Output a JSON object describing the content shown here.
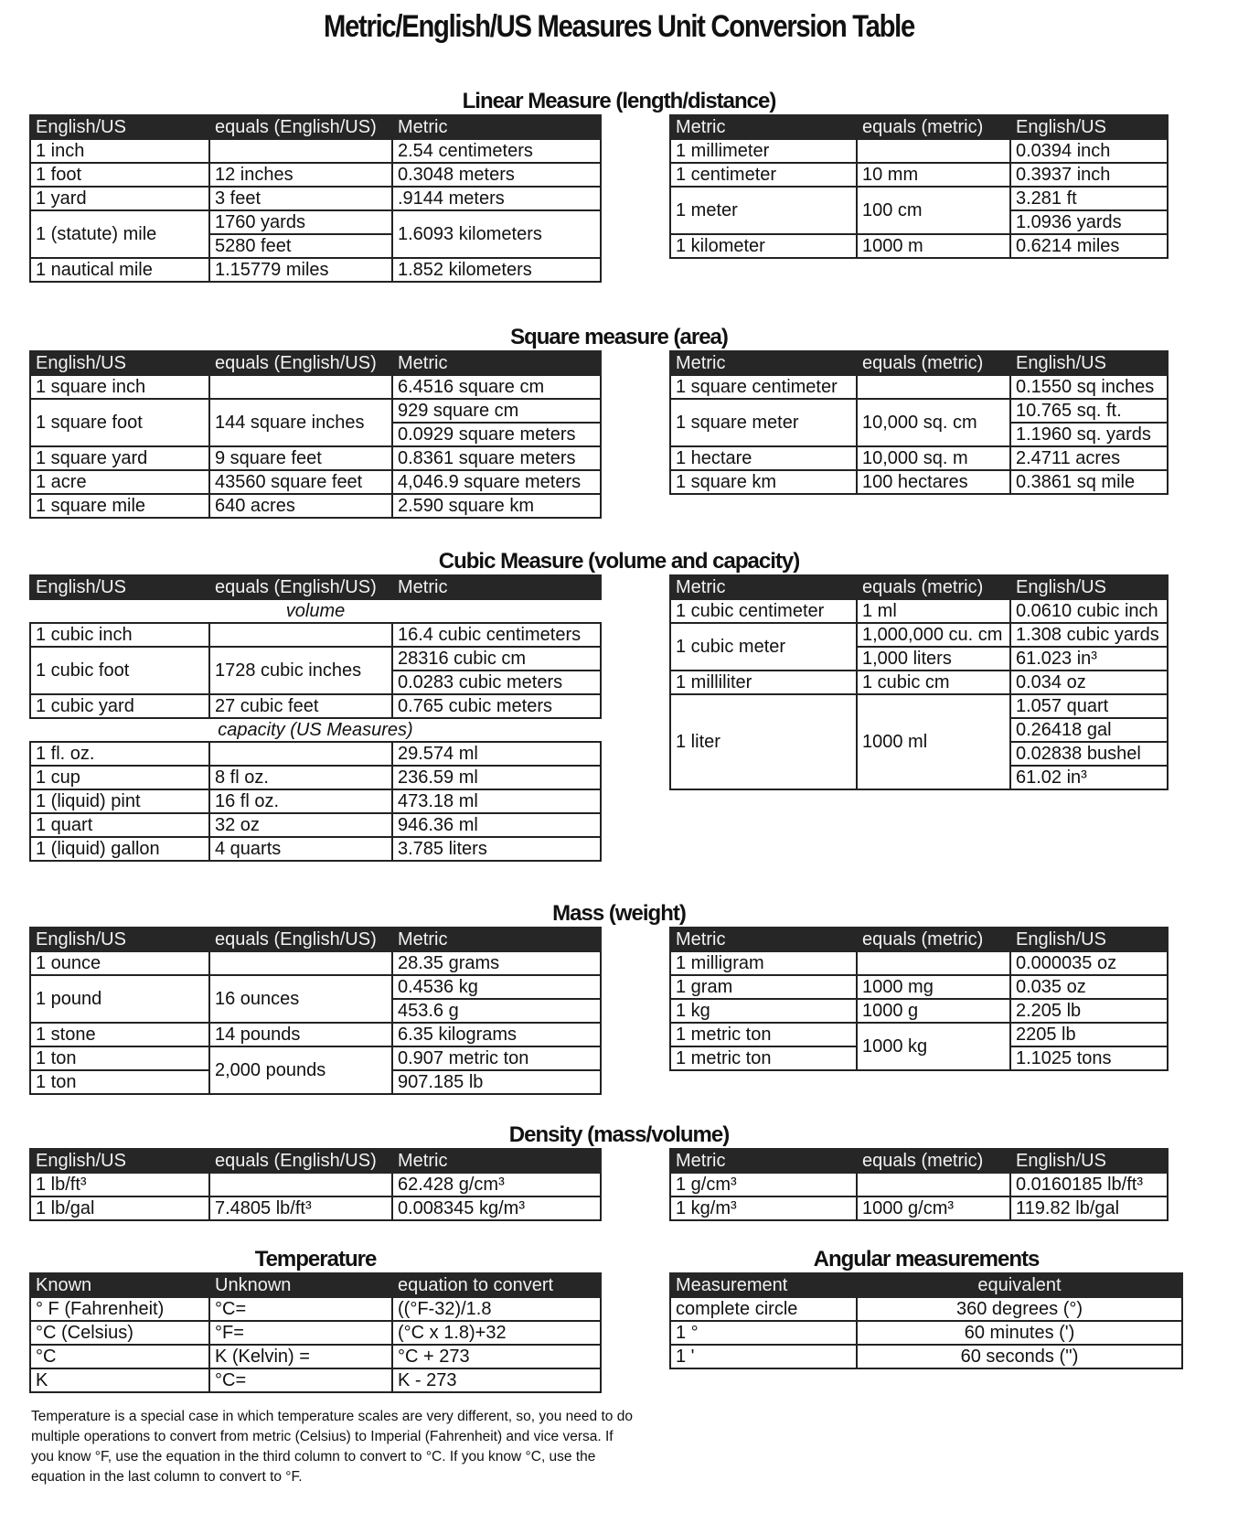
{
  "title": "Metric/English/US Measures Unit Conversion Table",
  "sections": [
    {
      "heading": "Linear Measure (length/distance)",
      "tables": [
        {
          "side": "l",
          "rows": [
            [
              {
                "t": "English/US"
              },
              {
                "t": "equals (English/US)"
              },
              {
                "t": "Metric"
              }
            ],
            [
              {
                "t": "1 inch"
              },
              {
                "t": ""
              },
              {
                "t": "2.54 centimeters"
              }
            ],
            [
              {
                "t": "1 foot"
              },
              {
                "t": "12 inches"
              },
              {
                "t": "0.3048 meters"
              }
            ],
            [
              {
                "t": "1 yard"
              },
              {
                "t": "3 feet"
              },
              {
                "t": ".9144 meters"
              }
            ],
            [
              {
                "t": "1 (statute) mile",
                "rs": 2
              },
              {
                "t": "1760 yards"
              },
              {
                "t": "1.6093 kilometers",
                "rs": 2
              }
            ],
            [
              {
                "t": "5280 feet"
              }
            ],
            [
              {
                "t": "1 nautical mile"
              },
              {
                "t": "1.15779 miles"
              },
              {
                "t": "1.852 kilometers"
              }
            ]
          ]
        },
        {
          "side": "r",
          "rows": [
            [
              {
                "t": "Metric"
              },
              {
                "t": "equals (metric)"
              },
              {
                "t": "English/US"
              }
            ],
            [
              {
                "t": "1 millimeter"
              },
              {
                "t": ""
              },
              {
                "t": "0.0394 inch"
              }
            ],
            [
              {
                "t": "1 centimeter"
              },
              {
                "t": "10 mm"
              },
              {
                "t": "0.3937 inch"
              }
            ],
            [
              {
                "t": "1 meter",
                "rs": 2
              },
              {
                "t": "100 cm",
                "rs": 2
              },
              {
                "t": "3.281 ft"
              }
            ],
            [
              {
                "t": "1.0936 yards"
              }
            ],
            [
              {
                "t": "1 kilometer"
              },
              {
                "t": "1000 m"
              },
              {
                "t": "0.6214 miles"
              }
            ]
          ]
        }
      ]
    },
    {
      "heading": "Square measure (area)",
      "tables": [
        {
          "side": "l",
          "rows": [
            [
              {
                "t": "English/US"
              },
              {
                "t": "equals (English/US)"
              },
              {
                "t": "Metric"
              }
            ],
            [
              {
                "t": "1 square inch"
              },
              {
                "t": ""
              },
              {
                "t": "6.4516 square cm"
              }
            ],
            [
              {
                "t": "1 square foot",
                "rs": 2
              },
              {
                "t": "144 square inches",
                "rs": 2
              },
              {
                "t": "929 square cm"
              }
            ],
            [
              {
                "t": "0.0929 square meters"
              }
            ],
            [
              {
                "t": "1 square yard"
              },
              {
                "t": "9 square feet"
              },
              {
                "t": "0.8361 square meters"
              }
            ],
            [
              {
                "t": "1 acre"
              },
              {
                "t": "43560 square feet"
              },
              {
                "t": "4,046.9 square meters"
              }
            ],
            [
              {
                "t": "1 square mile"
              },
              {
                "t": "640 acres"
              },
              {
                "t": "2.590 square km"
              }
            ]
          ]
        },
        {
          "side": "r",
          "rows": [
            [
              {
                "t": "Metric"
              },
              {
                "t": "equals (metric)"
              },
              {
                "t": "English/US"
              }
            ],
            [
              {
                "t": "1 square centimeter"
              },
              {
                "t": ""
              },
              {
                "t": "0.1550 sq inches"
              }
            ],
            [
              {
                "t": "1 square meter",
                "rs": 2
              },
              {
                "t": "10,000 sq. cm",
                "rs": 2
              },
              {
                "t": "10.765 sq. ft."
              }
            ],
            [
              {
                "t": "1.1960 sq. yards"
              }
            ],
            [
              {
                "t": "1 hectare"
              },
              {
                "t": "10,000 sq. m"
              },
              {
                "t": "2.4711 acres"
              }
            ],
            [
              {
                "t": "1 square km"
              },
              {
                "t": "100 hectares"
              },
              {
                "t": "0.3861 sq mile"
              }
            ]
          ]
        }
      ]
    },
    {
      "heading": "Cubic Measure (volume and capacity)",
      "tables": [
        {
          "side": "l",
          "rows": [
            [
              {
                "t": "English/US"
              },
              {
                "t": "equals (English/US)"
              },
              {
                "t": "Metric"
              }
            ],
            [
              {
                "t": "volume",
                "cs": 3,
                "cls": "sub"
              }
            ],
            [
              {
                "t": "1 cubic inch"
              },
              {
                "t": ""
              },
              {
                "t": "16.4 cubic centimeters"
              }
            ],
            [
              {
                "t": "1 cubic foot",
                "rs": 2
              },
              {
                "t": "1728 cubic inches",
                "rs": 2
              },
              {
                "t": "28316 cubic cm"
              }
            ],
            [
              {
                "t": "0.0283 cubic meters"
              }
            ],
            [
              {
                "t": "1 cubic yard"
              },
              {
                "t": "27 cubic feet"
              },
              {
                "t": "0.765 cubic meters"
              }
            ],
            [
              {
                "t": "capacity (US Measures)",
                "cs": 3,
                "cls": "sub"
              }
            ],
            [
              {
                "t": "1 fl. oz."
              },
              {
                "t": ""
              },
              {
                "t": "29.574 ml"
              }
            ],
            [
              {
                "t": "1 cup"
              },
              {
                "t": "8 fl oz."
              },
              {
                "t": "236.59 ml"
              }
            ],
            [
              {
                "t": "1 (liquid) pint"
              },
              {
                "t": "16 fl oz."
              },
              {
                "t": "473.18 ml"
              }
            ],
            [
              {
                "t": "1 quart"
              },
              {
                "t": "32 oz"
              },
              {
                "t": "946.36 ml"
              }
            ],
            [
              {
                "t": "1 (liquid) gallon"
              },
              {
                "t": "4 quarts"
              },
              {
                "t": "3.785 liters"
              }
            ]
          ]
        },
        {
          "side": "r",
          "rows": [
            [
              {
                "t": "Metric"
              },
              {
                "t": "equals (metric)"
              },
              {
                "t": "English/US"
              }
            ],
            [
              {
                "t": "1 cubic centimeter"
              },
              {
                "t": "1 ml"
              },
              {
                "t": "0.0610 cubic inch"
              }
            ],
            [
              {
                "t": "1 cubic meter",
                "rs": 2
              },
              {
                "t": "1,000,000 cu. cm"
              },
              {
                "t": "1.308 cubic yards"
              }
            ],
            [
              {
                "t": "1,000 liters"
              },
              {
                "t": "61.023 in³"
              }
            ],
            [
              {
                "t": "1 milliliter"
              },
              {
                "t": "1 cubic cm"
              },
              {
                "t": "0.034 oz"
              }
            ],
            [
              {
                "t": "1 liter",
                "rs": 4
              },
              {
                "t": "1000 ml",
                "rs": 4
              },
              {
                "t": "1.057 quart"
              }
            ],
            [
              {
                "t": "0.26418 gal"
              }
            ],
            [
              {
                "t": "0.02838 bushel"
              }
            ],
            [
              {
                "t": "61.02 in³"
              }
            ]
          ]
        }
      ]
    },
    {
      "heading": "Mass (weight)",
      "tables": [
        {
          "side": "l",
          "rows": [
            [
              {
                "t": "English/US"
              },
              {
                "t": "equals (English/US)"
              },
              {
                "t": "Metric"
              }
            ],
            [
              {
                "t": "1 ounce"
              },
              {
                "t": ""
              },
              {
                "t": "28.35 grams"
              }
            ],
            [
              {
                "t": "1 pound",
                "rs": 2
              },
              {
                "t": "16 ounces",
                "rs": 2
              },
              {
                "t": "0.4536 kg"
              }
            ],
            [
              {
                "t": "453.6 g"
              }
            ],
            [
              {
                "t": "1 stone"
              },
              {
                "t": "14 pounds"
              },
              {
                "t": "6.35 kilograms"
              }
            ],
            [
              {
                "t": "1 ton"
              },
              {
                "t": "2,000 pounds",
                "rs": 2
              },
              {
                "t": "0.907 metric ton"
              }
            ],
            [
              {
                "t": "1 ton"
              },
              {
                "t": "907.185 lb"
              }
            ]
          ]
        },
        {
          "side": "r",
          "rows": [
            [
              {
                "t": "Metric"
              },
              {
                "t": "equals (metric)"
              },
              {
                "t": "English/US"
              }
            ],
            [
              {
                "t": "1 milligram"
              },
              {
                "t": ""
              },
              {
                "t": "0.000035 oz"
              }
            ],
            [
              {
                "t": "1 gram"
              },
              {
                "t": "1000 mg"
              },
              {
                "t": "0.035 oz"
              }
            ],
            [
              {
                "t": "1 kg"
              },
              {
                "t": "1000 g"
              },
              {
                "t": "2.205 lb"
              }
            ],
            [
              {
                "t": "1 metric ton"
              },
              {
                "t": "1000 kg",
                "rs": 2
              },
              {
                "t": "2205 lb"
              }
            ],
            [
              {
                "t": "1 metric ton"
              },
              {
                "t": "1.1025 tons"
              }
            ]
          ]
        }
      ]
    },
    {
      "heading": "Density (mass/volume)",
      "tables": [
        {
          "side": "l",
          "rows": [
            [
              {
                "t": "English/US"
              },
              {
                "t": "equals (English/US)"
              },
              {
                "t": "Metric"
              }
            ],
            [
              {
                "t": "1 lb/ft³"
              },
              {
                "t": ""
              },
              {
                "t": "62.428 g/cm³"
              }
            ],
            [
              {
                "t": "1 lb/gal"
              },
              {
                "t": "7.4805 lb/ft³"
              },
              {
                "t": "0.008345 kg/m³"
              }
            ]
          ]
        },
        {
          "side": "r",
          "rows": [
            [
              {
                "t": "Metric"
              },
              {
                "t": "equals (metric)"
              },
              {
                "t": "English/US"
              }
            ],
            [
              {
                "t": "1 g/cm³"
              },
              {
                "t": ""
              },
              {
                "t": "0.0160185 lb/ft³"
              }
            ],
            [
              {
                "t": "1 kg/m³"
              },
              {
                "t": "1000 g/cm³"
              },
              {
                "t": "119.82 lb/gal"
              }
            ]
          ]
        }
      ]
    },
    {
      "heading": "",
      "tables": [
        {
          "side": "l",
          "heading": "Temperature",
          "rows": [
            [
              {
                "t": "Known"
              },
              {
                "t": "Unknown"
              },
              {
                "t": "equation to convert"
              }
            ],
            [
              {
                "t": "° F (Fahrenheit)"
              },
              {
                "t": "°C="
              },
              {
                "t": "((°F-32)/1.8"
              }
            ],
            [
              {
                "t": "°C (Celsius)"
              },
              {
                "t": "°F="
              },
              {
                "t": "(°C x 1.8)+32"
              }
            ],
            [
              {
                "t": "°C"
              },
              {
                "t": "K (Kelvin) ="
              },
              {
                "t": "°C + 273"
              }
            ],
            [
              {
                "t": "K"
              },
              {
                "t": "°C="
              },
              {
                "t": "K - 273"
              }
            ]
          ]
        },
        {
          "side": "a",
          "heading": "Angular measurements",
          "rows": [
            [
              {
                "t": "Measurement"
              },
              {
                "t": "equivalent",
                "cls": "center"
              }
            ],
            [
              {
                "t": "complete circle"
              },
              {
                "t": "360 degrees (°)",
                "cls": "center"
              }
            ],
            [
              {
                "t": "1 °"
              },
              {
                "t": "60 minutes (')",
                "cls": "center"
              }
            ],
            [
              {
                "t": "1 '"
              },
              {
                "t": "60 seconds ('')",
                "cls": "center"
              }
            ]
          ]
        }
      ]
    }
  ],
  "temperature_note": "Temperature is a special case in which temperature scales are very different, so, you need to do multiple operations to convert from metric (Celsius) to Imperial (Fahrenheit) and vice versa.  If you know °F, use the equation in the third column to convert to °C.  If you know °C, use the equation in the last column to convert to °F."
}
